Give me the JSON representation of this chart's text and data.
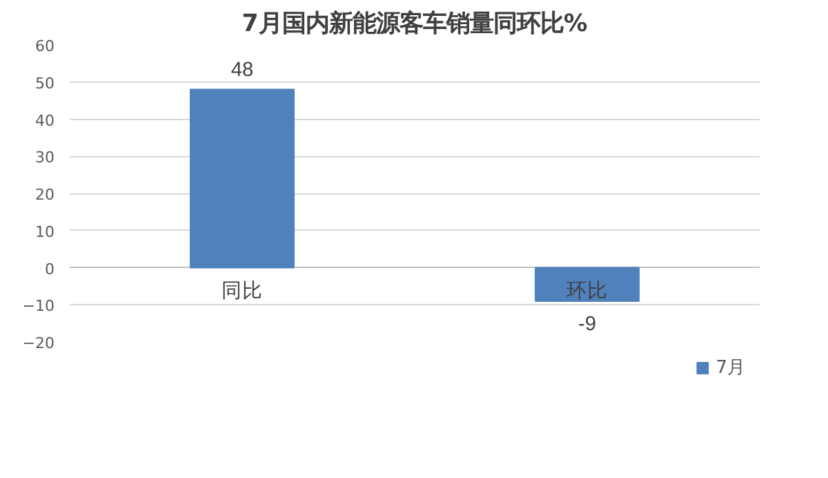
{
  "chart_data": {
    "type": "bar",
    "title": "7月国内新能源客车销量同环比%",
    "categories": [
      "同比",
      "环比"
    ],
    "series": [
      {
        "name": "7月",
        "color": "#4f81bd",
        "values": [
          48,
          -9
        ]
      }
    ],
    "ylim": [
      -20,
      60
    ],
    "yticks": [
      -20,
      -10,
      0,
      10,
      20,
      30,
      40,
      50,
      60
    ],
    "grid": "y",
    "legend": "bottom",
    "data_labels": true
  }
}
